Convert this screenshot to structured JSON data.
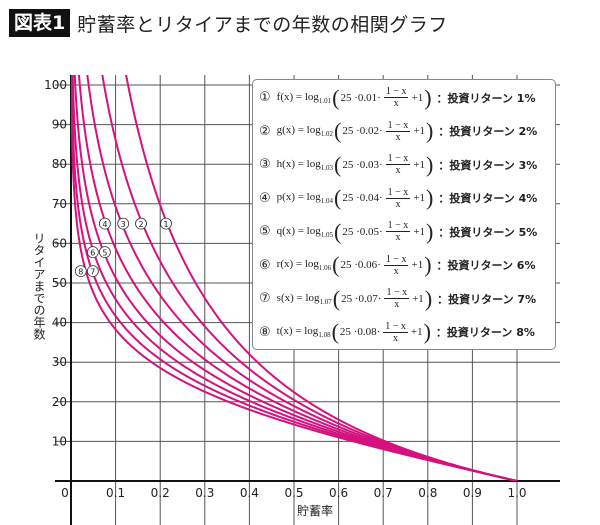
{
  "title": {
    "badge": "図表1",
    "text": "貯蓄率とリタイアまでの年数の相関グラフ"
  },
  "chart_data": {
    "type": "line",
    "title": "貯蓄率とリタイアまでの年数の相関グラフ",
    "xlabel": "貯蓄率",
    "ylabel": "リタイアまでの年数",
    "xlim": [
      0,
      1.0
    ],
    "ylim": [
      0,
      100
    ],
    "x_ticks": [
      "0",
      "0.1",
      "0.2",
      "0.3",
      "0.4",
      "0.5",
      "0.6",
      "0.7",
      "0.8",
      "0.9",
      "1.0"
    ],
    "y_ticks": [
      "10",
      "20",
      "30",
      "40",
      "50",
      "60",
      "70",
      "80",
      "90",
      "100"
    ],
    "grid": true,
    "line_color": "#d4127f",
    "legend_position": "top-right",
    "series": [
      {
        "marker": "①",
        "fn": "f",
        "base": "1.01",
        "rate": "0.01",
        "label": "：投資リターン 1%",
        "r": 0.01,
        "label_at": [
          0.213,
          65
        ]
      },
      {
        "marker": "②",
        "fn": "g",
        "base": "1.02",
        "rate": "0.02",
        "label": "：投資リターン 2%",
        "r": 0.02,
        "label_at": [
          0.157,
          65
        ]
      },
      {
        "marker": "③",
        "fn": "h",
        "base": "1.03",
        "rate": "0.03",
        "label": "：投資リターン 3%",
        "r": 0.03,
        "label_at": [
          0.117,
          65
        ]
      },
      {
        "marker": "④",
        "fn": "p",
        "base": "1.04",
        "rate": "0.04",
        "label": "：投資リターン 4%",
        "r": 0.04,
        "label_at": [
          0.076,
          65
        ]
      },
      {
        "marker": "⑤",
        "fn": "q",
        "base": "1.05",
        "rate": "0.05",
        "label": "：投資リターン 5%",
        "r": 0.05,
        "label_at": [
          0.076,
          57.8
        ]
      },
      {
        "marker": "⑥",
        "fn": "r",
        "base": "1.06",
        "rate": "0.06",
        "label": "：投資リターン 6%",
        "r": 0.06,
        "label_at": [
          0.049,
          57.8
        ]
      },
      {
        "marker": "⑦",
        "fn": "s",
        "base": "1.07",
        "rate": "0.07",
        "label": "：投資リターン 7%",
        "r": 0.07,
        "label_at": [
          0.049,
          53
        ]
      },
      {
        "marker": "⑧",
        "fn": "t",
        "base": "1.08",
        "rate": "0.08",
        "label": "：投資リターン 8%",
        "r": 0.08,
        "label_at": [
          0.022,
          53
        ]
      }
    ],
    "formula": {
      "prefix": "(x) = log",
      "const": "25 · ",
      "dot": " · ",
      "num": "1 − x",
      "den": "x",
      "plus": "+1"
    }
  }
}
